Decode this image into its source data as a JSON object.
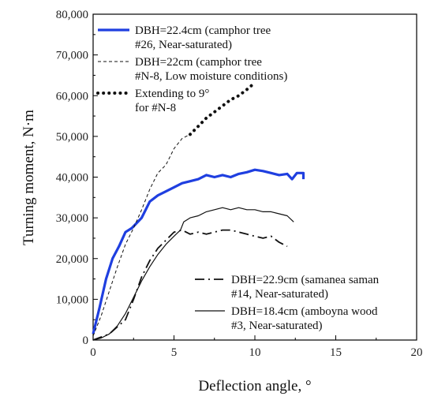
{
  "chart_data": {
    "type": "line",
    "xlabel": "Deflection angle, °",
    "ylabel": "Turning moment, N·m",
    "xlim": [
      0,
      20
    ],
    "ylim": [
      0,
      80000
    ],
    "x_ticks": [
      "0",
      "5",
      "10",
      "15",
      "20"
    ],
    "y_ticks": [
      "0",
      "10,000",
      "20,000",
      "30,000",
      "40,000",
      "50,000",
      "60,000",
      "70,000",
      "80,000"
    ],
    "grid": false,
    "legend_top": [
      {
        "series": 0,
        "lines": [
          "DBH=22.4cm (camphor tree",
          "#26, Near-saturated)"
        ]
      },
      {
        "series": 1,
        "lines": [
          "DBH=22cm (camphor tree",
          "#N-8, Low moisture conditions)"
        ]
      },
      {
        "series": 2,
        "lines": [
          "Extending to 9°",
          "for #N-8"
        ]
      }
    ],
    "legend_bottom": [
      {
        "series": 3,
        "lines": [
          "DBH=22.9cm (samanea saman",
          "#14, Near-saturated)"
        ]
      },
      {
        "series": 4,
        "lines": [
          "DBH=18.4cm (amboyna wood",
          "#3, Near-saturated)"
        ]
      }
    ],
    "series": [
      {
        "name": "DBH=22.4cm (camphor tree #26, Near-saturated)",
        "color": "#1f3fe0",
        "style": "thick-solid",
        "x": [
          0,
          0.4,
          0.8,
          1.2,
          1.6,
          2.0,
          2.4,
          3.0,
          3.5,
          4.0,
          4.5,
          5.0,
          5.5,
          6.0,
          6.5,
          7.0,
          7.5,
          8.0,
          8.5,
          9.0,
          9.5,
          10.0,
          10.5,
          11.0,
          11.5,
          12.0,
          12.3,
          12.6,
          13.0,
          13.0
        ],
        "y": [
          1500,
          8000,
          15000,
          20000,
          23000,
          26500,
          27500,
          30000,
          34000,
          35500,
          36500,
          37500,
          38500,
          39000,
          39500,
          40500,
          40000,
          40500,
          40000,
          40800,
          41200,
          41800,
          41500,
          41000,
          40500,
          40800,
          39500,
          41000,
          41000,
          39500
        ]
      },
      {
        "name": "DBH=22cm (camphor tree #N-8, Low moisture conditions)",
        "color": "#111111",
        "style": "thin-dashed",
        "x": [
          0,
          0.5,
          1.0,
          1.5,
          2.0,
          2.5,
          3.0,
          3.5,
          4.0,
          4.5,
          5.0,
          5.5,
          6.0
        ],
        "y": [
          1000,
          6000,
          12000,
          18000,
          23500,
          27500,
          32000,
          37000,
          41000,
          43000,
          47000,
          49500,
          50500
        ]
      },
      {
        "name": "Extending to 9° for #N-8",
        "color": "#111111",
        "style": "dotted-thick",
        "x": [
          6.0,
          6.5,
          7.0,
          7.5,
          8.0,
          8.5,
          9.0,
          9.5,
          9.8
        ],
        "y": [
          50500,
          52500,
          54500,
          56000,
          57500,
          59000,
          60000,
          61500,
          62500
        ]
      },
      {
        "name": "DBH=22.9cm (samanea saman #14, Near-saturated)",
        "color": "#111111",
        "style": "dash-dot",
        "x": [
          0,
          1.0,
          2.0,
          2.5,
          3.0,
          3.5,
          4.0,
          4.5,
          5.0,
          5.5,
          6.0,
          6.5,
          7.0,
          7.5,
          8.0,
          8.5,
          9.0,
          9.5,
          10.0,
          10.5,
          11.0,
          11.5,
          12.0
        ],
        "y": [
          0,
          1500,
          5000,
          10000,
          15500,
          19500,
          22500,
          24500,
          26500,
          27000,
          26000,
          26500,
          26000,
          26500,
          27000,
          27000,
          26500,
          26000,
          25500,
          25000,
          25500,
          24000,
          23000
        ]
      },
      {
        "name": "DBH=18.4cm (amboyna wood #3, Near-saturated)",
        "color": "#111111",
        "style": "thin-solid",
        "x": [
          0,
          0.5,
          1.0,
          1.5,
          2.0,
          2.5,
          3.0,
          3.5,
          4.0,
          4.5,
          5.0,
          5.4,
          5.6,
          6.0,
          6.5,
          7.0,
          7.5,
          8.0,
          8.5,
          9.0,
          9.5,
          10.0,
          10.5,
          11.0,
          11.5,
          12.0,
          12.4
        ],
        "y": [
          0,
          500,
          1500,
          3500,
          6500,
          10500,
          14500,
          18000,
          21000,
          23500,
          25500,
          27000,
          29000,
          30000,
          30500,
          31500,
          32000,
          32500,
          32000,
          32500,
          32000,
          32000,
          31500,
          31500,
          31000,
          30500,
          29000
        ]
      }
    ]
  }
}
